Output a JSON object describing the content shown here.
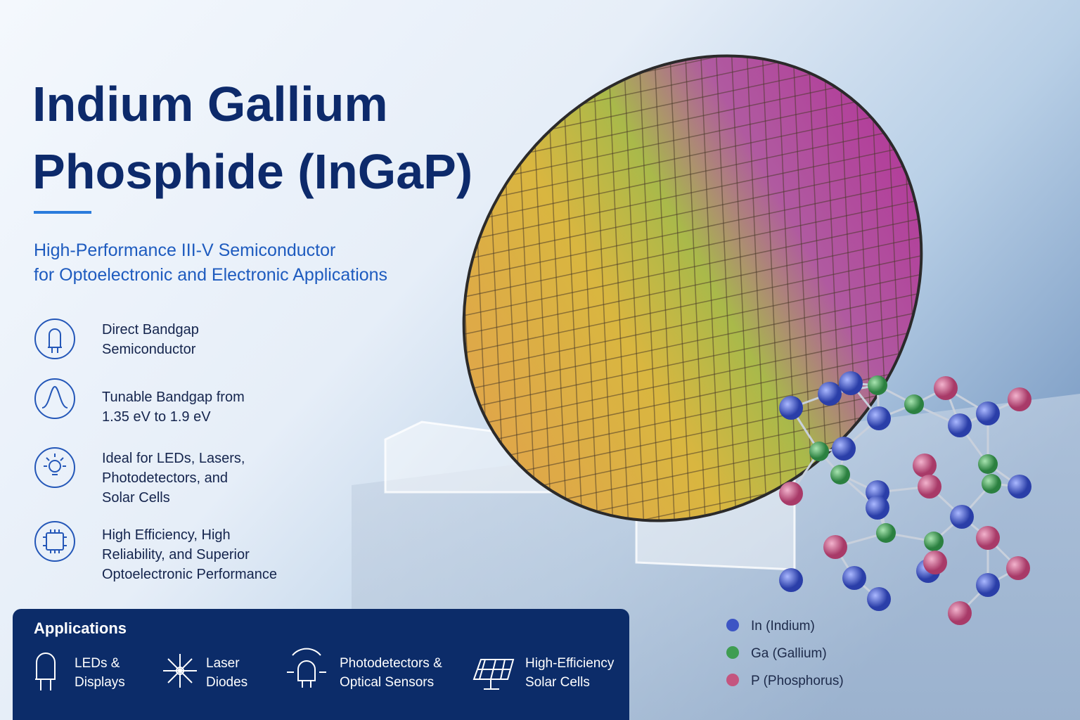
{
  "header": {
    "title": [
      "Indium Gallium",
      "Phosphide (InGaP)"
    ],
    "subtitle": [
      "High-Performance III-V Semiconductor",
      "for Optoelectronic and Electronic Applications"
    ]
  },
  "features": [
    {
      "lines": [
        "Direct Bandgap",
        "Semiconductor"
      ]
    },
    {
      "lines": [
        "Tunable Bandgap from",
        "1.35 eV to 1.9 eV"
      ]
    },
    {
      "lines": [
        "Ideal for LEDs, Lasers,",
        "Photodetectors, and",
        "Solar Cells"
      ]
    },
    {
      "lines": [
        "High Efficiency, High",
        "Reliability, and Superior",
        "Optoelectronic Performance"
      ]
    }
  ],
  "applications": {
    "heading": "Applications",
    "items": [
      {
        "lines": [
          "LEDs &",
          "Displays"
        ]
      },
      {
        "lines": [
          "Laser",
          "Diodes"
        ]
      },
      {
        "lines": [
          "Photodetectors &",
          "Optical Sensors"
        ]
      },
      {
        "lines": [
          "High-Efficiency",
          "Solar Cells"
        ]
      }
    ]
  },
  "legend": [
    {
      "label": "In (Indium)",
      "color": "#3d55c4"
    },
    {
      "label": "Ga (Gallium)",
      "color": "#3f9d52"
    },
    {
      "label": "P (Phosphorus)",
      "color": "#c4557f"
    }
  ]
}
